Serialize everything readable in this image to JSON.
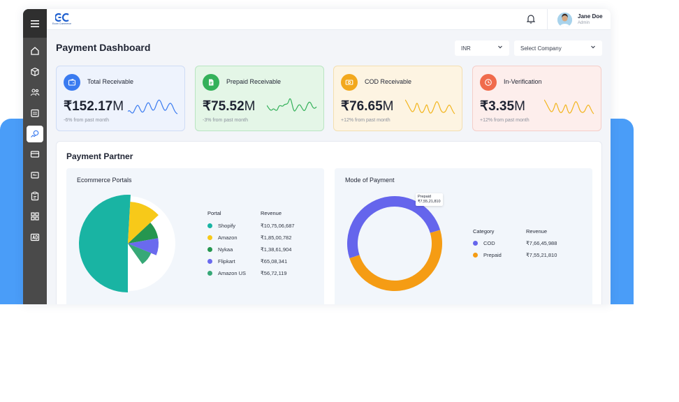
{
  "app": {
    "logo_text": "EC",
    "logo_subtitle": "Ecom Commerce"
  },
  "user": {
    "name": "Jane Doe",
    "role": "Admin"
  },
  "page": {
    "title": "Payment Dashboard"
  },
  "filters": {
    "currency": "INR",
    "company": "Select Company"
  },
  "sidebar": {
    "items": [
      {
        "icon": "home-icon",
        "active": false
      },
      {
        "icon": "cube-icon",
        "active": false
      },
      {
        "icon": "users-icon",
        "active": false
      },
      {
        "icon": "archive-icon",
        "active": false
      },
      {
        "icon": "payment-icon",
        "active": true
      },
      {
        "icon": "card-icon",
        "active": false
      },
      {
        "icon": "receipt-icon",
        "active": false
      },
      {
        "icon": "clipboard-icon",
        "active": false
      },
      {
        "icon": "grid-icon",
        "active": false
      },
      {
        "icon": "ad-icon",
        "active": false
      }
    ]
  },
  "cards": [
    {
      "title": "Total Receivable",
      "value": "₹152.17",
      "unit": "M",
      "delta": "-6% from past month",
      "icon": "wallet-icon",
      "color": "#3a7bf0"
    },
    {
      "title": "Prepaid Receivable",
      "value": "₹75.52",
      "unit": "M",
      "delta": "-3% from past month",
      "icon": "document-icon",
      "color": "#34b15a"
    },
    {
      "title": "COD Receivable",
      "value": "₹76.65",
      "unit": "M",
      "delta": "+12% from past month",
      "icon": "cash-icon",
      "color": "#f2a81d"
    },
    {
      "title": "In-Verification",
      "value": "₹3.35",
      "unit": "M",
      "delta": "+12% from past month",
      "icon": "clock-icon",
      "color": "#f06b4c"
    }
  ],
  "partner": {
    "title": "Payment Partner",
    "portals": {
      "title": "Ecommerce Portals",
      "col_portal": "Portal",
      "col_revenue": "Revenue",
      "rows": [
        {
          "name": "Shopify",
          "revenue": "₹10,75,06,687",
          "color": "#19b4a3"
        },
        {
          "name": "Amazon",
          "revenue": "₹1,85,00,782",
          "color": "#f7c919"
        },
        {
          "name": "Nykaa",
          "revenue": "₹1,38,61,904",
          "color": "#25964f"
        },
        {
          "name": "Flipkart",
          "revenue": "₹65,08,341",
          "color": "#6a6aee"
        },
        {
          "name": "Amazon US",
          "revenue": "₹56,72,119",
          "color": "#37a877"
        }
      ]
    },
    "payment_mode": {
      "title": "Mode of Payment",
      "col_category": "Category",
      "col_revenue": "Revenue",
      "rows": [
        {
          "name": "COD",
          "revenue": "₹7,66,45,988",
          "color": "#6565ec"
        },
        {
          "name": "Prepaid",
          "revenue": "₹7,55,21,810",
          "color": "#f59c14"
        }
      ],
      "tooltip": {
        "label": "Prepaid",
        "value": "₹7,55,21,810"
      }
    }
  },
  "chart_data": [
    {
      "type": "pie",
      "title": "Ecommerce Portals",
      "categories": [
        "Shopify",
        "Amazon",
        "Nykaa",
        "Flipkart",
        "Amazon US"
      ],
      "values": [
        107506687,
        18500782,
        13861904,
        6508341,
        5672119
      ]
    },
    {
      "type": "pie",
      "title": "Mode of Payment",
      "categories": [
        "COD",
        "Prepaid"
      ],
      "values": [
        76645988,
        75521810
      ]
    }
  ]
}
